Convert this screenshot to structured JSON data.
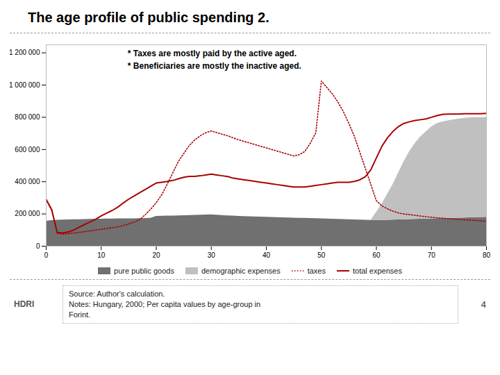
{
  "chart_data": {
    "type": "area",
    "title": "The age profile of public spending 2.",
    "annotations": [
      "* Taxes are mostly paid by the active aged.",
      "* Beneficiaries are mostly the inactive aged."
    ],
    "caption": "Source: Author's calculation.\nNotes: Hungary, 2000; Per capita values by age-group in\nForint.",
    "logo_text": "HDRI",
    "page_number": "4",
    "stacked": true,
    "grid": false,
    "legend": "bottom",
    "x": [
      0,
      1,
      2,
      3,
      4,
      5,
      6,
      7,
      8,
      9,
      10,
      11,
      12,
      13,
      14,
      15,
      16,
      17,
      18,
      19,
      20,
      21,
      22,
      23,
      24,
      25,
      26,
      27,
      28,
      29,
      30,
      31,
      32,
      33,
      34,
      35,
      36,
      37,
      38,
      39,
      40,
      41,
      42,
      43,
      44,
      45,
      46,
      47,
      48,
      49,
      50,
      51,
      52,
      53,
      54,
      55,
      56,
      57,
      58,
      59,
      60,
      61,
      62,
      63,
      64,
      65,
      66,
      67,
      68,
      69,
      70,
      71,
      72,
      73,
      74,
      75,
      76,
      77,
      78,
      79,
      80
    ],
    "series": [
      {
        "name": "pure public goods",
        "type": "area",
        "color": "#707070",
        "values": [
          155000,
          160000,
          162000,
          163000,
          164000,
          165000,
          165000,
          166000,
          167000,
          168000,
          168000,
          169000,
          169000,
          170000,
          170000,
          170000,
          170000,
          171000,
          172000,
          174000,
          185000,
          186000,
          187000,
          188000,
          189000,
          190000,
          191000,
          192000,
          193000,
          194000,
          195000,
          193000,
          191000,
          189000,
          187000,
          185000,
          184000,
          183000,
          182000,
          181000,
          180000,
          179000,
          178000,
          177000,
          176000,
          175000,
          174000,
          173000,
          172000,
          171000,
          170000,
          169000,
          168000,
          167000,
          166000,
          165000,
          164000,
          163000,
          162000,
          161000,
          160000,
          161000,
          162000,
          163000,
          164000,
          165000,
          166000,
          167000,
          168000,
          169000,
          170000,
          171000,
          172000,
          173000,
          174000,
          175000,
          176000,
          177000,
          178000,
          179000,
          180000
        ]
      },
      {
        "name": "demographic expenses",
        "type": "area",
        "color": "#c0c0c0",
        "values": [
          0,
          0,
          0,
          0,
          0,
          0,
          0,
          0,
          0,
          0,
          0,
          0,
          0,
          0,
          0,
          0,
          0,
          0,
          0,
          0,
          0,
          0,
          0,
          0,
          0,
          0,
          0,
          0,
          0,
          0,
          0,
          0,
          0,
          0,
          0,
          0,
          0,
          0,
          0,
          0,
          0,
          0,
          0,
          0,
          0,
          0,
          0,
          0,
          0,
          0,
          0,
          0,
          0,
          0,
          0,
          0,
          0,
          0,
          0,
          0,
          50000,
          100000,
          160000,
          220000,
          290000,
          360000,
          420000,
          470000,
          510000,
          540000,
          570000,
          590000,
          600000,
          605000,
          610000,
          615000,
          618000,
          620000,
          620000,
          620000,
          620000
        ]
      },
      {
        "name": "taxes",
        "type": "line",
        "color": "#aa0000",
        "line_style": "dotted",
        "values": [
          290000,
          230000,
          80000,
          75000,
          78000,
          82000,
          86000,
          90000,
          95000,
          100000,
          105000,
          110000,
          115000,
          120000,
          128000,
          138000,
          150000,
          165000,
          195000,
          230000,
          270000,
          320000,
          385000,
          455000,
          525000,
          575000,
          625000,
          660000,
          685000,
          705000,
          715000,
          705000,
          695000,
          685000,
          672000,
          660000,
          650000,
          640000,
          630000,
          620000,
          610000,
          600000,
          590000,
          580000,
          570000,
          560000,
          568000,
          588000,
          640000,
          705000,
          1025000,
          985000,
          945000,
          895000,
          835000,
          762000,
          682000,
          582000,
          482000,
          382000,
          282000,
          250000,
          232000,
          218000,
          206000,
          200000,
          196000,
          192000,
          187000,
          183000,
          180000,
          176000,
          174000,
          171000,
          169000,
          166000,
          164000,
          161000,
          160000,
          157000,
          155000
        ]
      },
      {
        "name": "total expenses",
        "type": "line",
        "color": "#aa0000",
        "line_style": "solid",
        "values": [
          290000,
          225000,
          85000,
          82000,
          88000,
          100000,
          118000,
          135000,
          150000,
          168000,
          188000,
          205000,
          222000,
          242000,
          268000,
          292000,
          312000,
          332000,
          352000,
          372000,
          392000,
          397000,
          402000,
          408000,
          418000,
          428000,
          433000,
          433000,
          437000,
          442000,
          447000,
          442000,
          437000,
          432000,
          422000,
          417000,
          412000,
          407000,
          402000,
          397000,
          392000,
          387000,
          382000,
          377000,
          372000,
          367000,
          367000,
          367000,
          372000,
          377000,
          382000,
          387000,
          392000,
          397000,
          397000,
          397000,
          402000,
          412000,
          432000,
          475000,
          548000,
          620000,
          672000,
          712000,
          742000,
          762000,
          772000,
          780000,
          785000,
          790000,
          800000,
          810000,
          818000,
          820000,
          820000,
          820000,
          822000,
          822000,
          822000,
          822000,
          825000
        ]
      }
    ],
    "xlim": [
      0,
      80
    ],
    "xticks": [
      0,
      10,
      20,
      30,
      40,
      50,
      60,
      70,
      80
    ],
    "ylim": [
      0,
      1250000
    ],
    "yticks": [
      0,
      {
        "value": 200000,
        "label": "200 000"
      },
      {
        "value": 400000,
        "label": "400 000"
      },
      {
        "value": 600000,
        "label": "600 000"
      },
      {
        "value": 800000,
        "label": "800 000"
      },
      {
        "value": 1000000,
        "label": "1 000 000"
      },
      {
        "value": 1200000,
        "label": "1 200 000"
      }
    ]
  }
}
